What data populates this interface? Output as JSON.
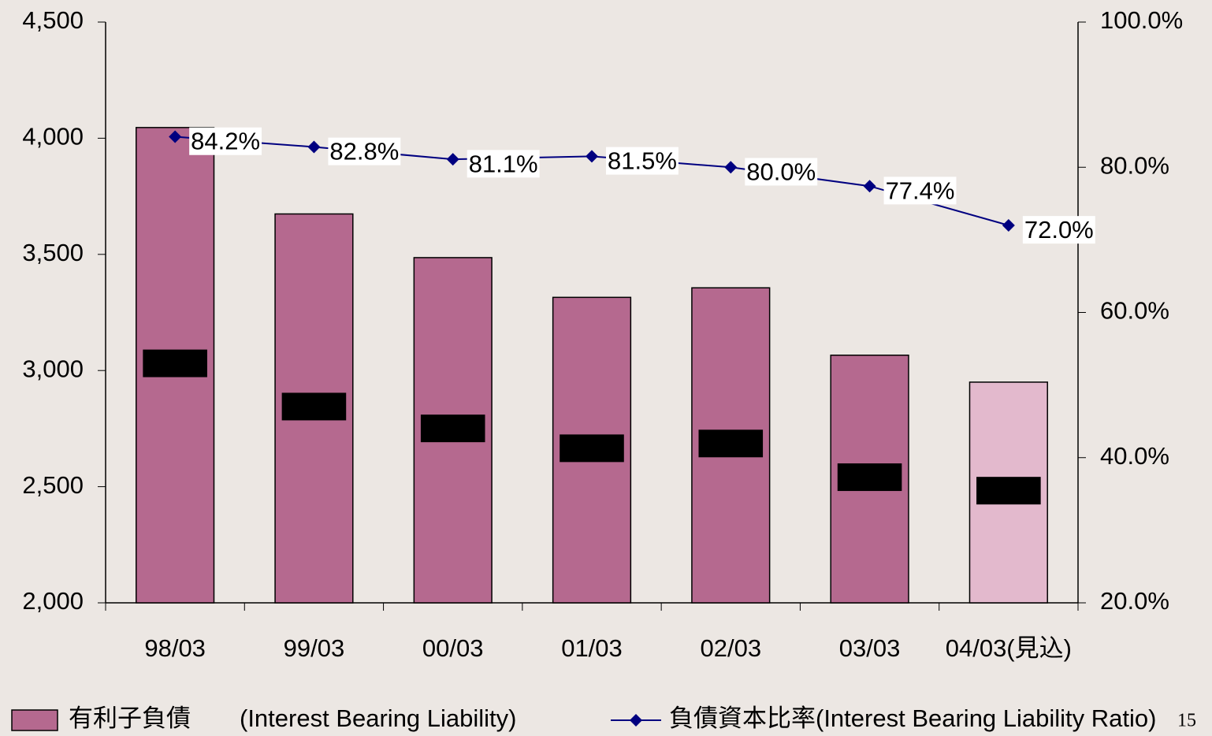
{
  "chart_data": {
    "type": "bar",
    "categories": [
      "98/03",
      "99/03",
      "00/03",
      "01/03",
      "02/03",
      "03/03",
      "04/03(見込)"
    ],
    "series": [
      {
        "name": "有利子負債　　(Interest Bearing Liability)",
        "type": "bar",
        "colors": [
          "#b5698f",
          "#b5698f",
          "#b5698f",
          "#b5698f",
          "#b5698f",
          "#b5698f",
          "#e3b9cd"
        ],
        "values": [
          4046,
          3674,
          3486,
          3315,
          3356,
          3066,
          2950
        ],
        "value_labels": [
          "4,046",
          "3,674",
          "3,486",
          "3,315",
          "3,356",
          "3,066",
          "2,950"
        ]
      },
      {
        "name": "負債資本比率(Interest Bearing Liability Ratio)",
        "type": "line",
        "axis": "y2",
        "color": "#000080",
        "values": [
          84.2,
          82.8,
          81.1,
          81.5,
          80.0,
          77.4,
          72.0
        ],
        "value_labels": [
          "84.2%",
          "82.8%",
          "81.1%",
          "81.5%",
          "80.0%",
          "77.4%",
          "72.0%"
        ]
      }
    ],
    "ylim": [
      2000,
      4500
    ],
    "yticks": [
      {
        "value": 2000,
        "label": "2,000"
      },
      {
        "value": 2500,
        "label": "2,500"
      },
      {
        "value": 3000,
        "label": "3,000"
      },
      {
        "value": 3500,
        "label": "3,500"
      },
      {
        "value": 4000,
        "label": "4,000"
      },
      {
        "value": 4500,
        "label": "4,500"
      }
    ],
    "y2lim": [
      20,
      100
    ],
    "y2ticks": [
      {
        "value": 20,
        "label": "20.0%"
      },
      {
        "value": 40,
        "label": "40.0%"
      },
      {
        "value": 60,
        "label": "60.0%"
      },
      {
        "value": 80,
        "label": "80.0%"
      },
      {
        "value": 100,
        "label": "100.0%"
      }
    ],
    "legend": "bottom",
    "page_number": "15"
  }
}
